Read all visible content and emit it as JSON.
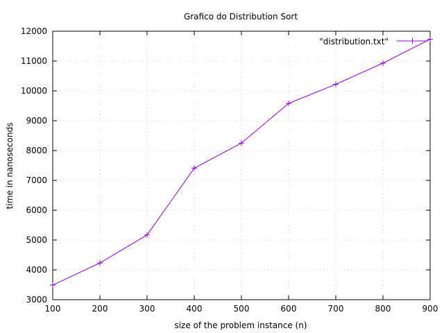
{
  "chart_data": {
    "type": "line",
    "title": "Grafico do Distribution Sort",
    "xlabel": "size of the problem instance (n)",
    "ylabel": "time in nanoseconds",
    "xlim": [
      100,
      900
    ],
    "ylim": [
      3000,
      12000
    ],
    "xticks": [
      100,
      200,
      300,
      400,
      500,
      600,
      700,
      800,
      900
    ],
    "yticks": [
      3000,
      4000,
      5000,
      6000,
      7000,
      8000,
      9000,
      10000,
      11000,
      12000
    ],
    "grid": true,
    "legend_position": "top-right",
    "series": [
      {
        "name": "\"distribution.txt\"",
        "color": "#9400d3",
        "marker": "plus",
        "x": [
          100,
          200,
          300,
          400,
          500,
          600,
          700,
          800,
          900
        ],
        "y": [
          3490,
          4230,
          5170,
          7410,
          8250,
          9580,
          10220,
          10930,
          11730
        ]
      }
    ]
  }
}
